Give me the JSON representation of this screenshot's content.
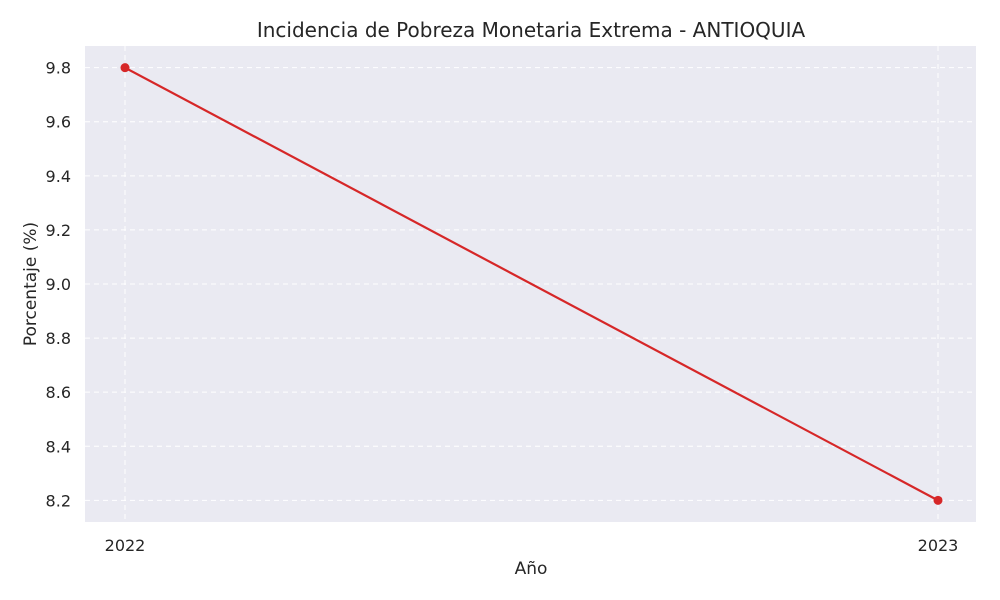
{
  "chart_data": {
    "type": "line",
    "title": "Incidencia de Pobreza Monetaria Extrema - ANTIOQUIA",
    "xlabel": "Año",
    "ylabel": "Porcentaje (%)",
    "categories": [
      "2022",
      "2023"
    ],
    "series": [
      {
        "values": [
          9.8,
          8.2
        ]
      }
    ],
    "ylim": [
      8.12,
      9.88
    ],
    "yticks": [
      "8.2",
      "8.4",
      "8.6",
      "8.8",
      "9.0",
      "9.2",
      "9.4",
      "9.6",
      "9.8"
    ],
    "grid": true,
    "legend": "none",
    "colors": {
      "line": "#d62728",
      "plot_background": "#eaeaf2",
      "grid": "#ffffff",
      "text": "#262626"
    }
  }
}
